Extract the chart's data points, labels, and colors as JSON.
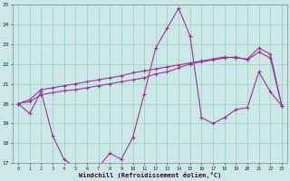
{
  "xlabel": "Windchill (Refroidissement éolien,°C)",
  "background_color": "#cce8e5",
  "grid_color": "#99cccc",
  "line_color": "#993399",
  "hours": [
    0,
    1,
    2,
    3,
    4,
    5,
    6,
    7,
    8,
    9,
    10,
    11,
    12,
    13,
    14,
    15,
    16,
    17,
    18,
    19,
    20,
    21,
    22,
    23
  ],
  "series1": [
    20.0,
    19.5,
    20.6,
    18.4,
    17.2,
    16.8,
    16.8,
    16.8,
    17.5,
    17.2,
    18.3,
    20.5,
    22.8,
    23.8,
    24.8,
    23.4,
    19.3,
    19.0,
    19.3,
    19.7,
    19.8,
    21.6,
    20.6,
    19.9
  ],
  "series2": [
    20.0,
    20.1,
    20.45,
    20.55,
    20.65,
    20.7,
    20.8,
    20.9,
    21.0,
    21.1,
    21.2,
    21.3,
    21.5,
    21.6,
    21.8,
    22.0,
    22.1,
    22.2,
    22.3,
    22.35,
    22.2,
    22.6,
    22.3,
    19.9
  ],
  "series3": [
    20.0,
    20.2,
    20.7,
    20.8,
    20.9,
    21.0,
    21.1,
    21.2,
    21.3,
    21.4,
    21.55,
    21.65,
    21.75,
    21.85,
    21.95,
    22.05,
    22.15,
    22.25,
    22.35,
    22.3,
    22.25,
    22.8,
    22.5,
    19.9
  ],
  "ylim": [
    17,
    25
  ],
  "yticks": [
    17,
    18,
    19,
    20,
    21,
    22,
    23,
    24,
    25
  ]
}
